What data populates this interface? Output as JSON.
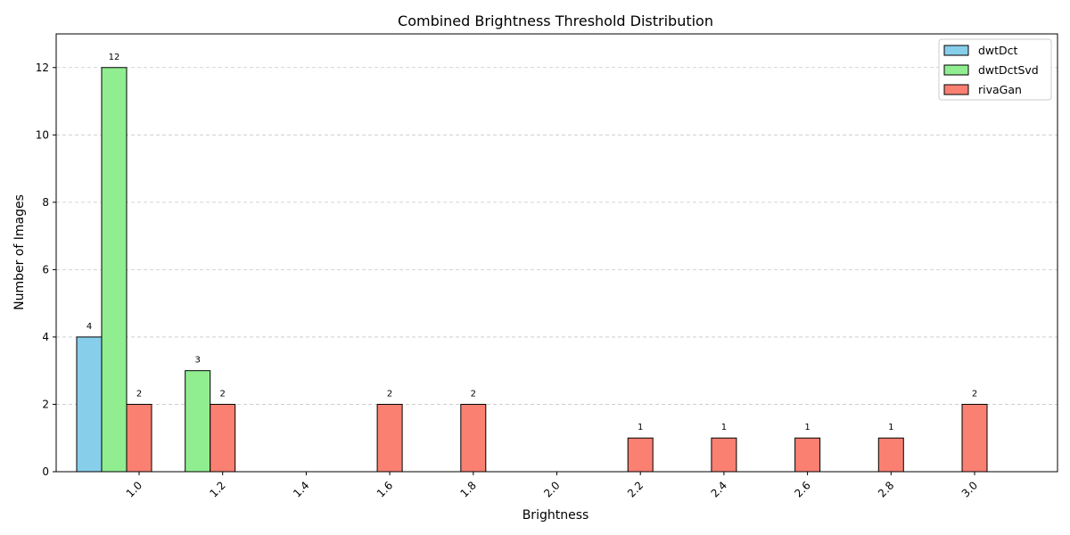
{
  "chart_data": {
    "type": "bar",
    "title": "Combined Brightness Threshold Distribution",
    "xlabel": "Brightness",
    "ylabel": "Number of Images",
    "categories": [
      "1.0",
      "1.2",
      "1.4",
      "1.6",
      "1.8",
      "2.0",
      "2.2",
      "2.4",
      "2.6",
      "2.8",
      "3.0"
    ],
    "series": [
      {
        "name": "dwtDct",
        "color": "#87CEEB",
        "values": [
          4,
          0,
          0,
          0,
          0,
          0,
          0,
          0,
          0,
          0,
          0
        ]
      },
      {
        "name": "dwtDctSvd",
        "color": "#90EE90",
        "values": [
          12,
          3,
          0,
          0,
          0,
          0,
          0,
          0,
          0,
          0,
          0
        ]
      },
      {
        "name": "rivaGan",
        "color": "#FA8072",
        "values": [
          2,
          2,
          0,
          2,
          2,
          0,
          1,
          1,
          1,
          1,
          2
        ]
      }
    ],
    "ylim": [
      0,
      13
    ],
    "yticks": [
      0,
      2,
      4,
      6,
      8,
      10,
      12
    ],
    "grid": "y-dashed",
    "legend": "top-right",
    "x_tick_rotation": 45
  }
}
